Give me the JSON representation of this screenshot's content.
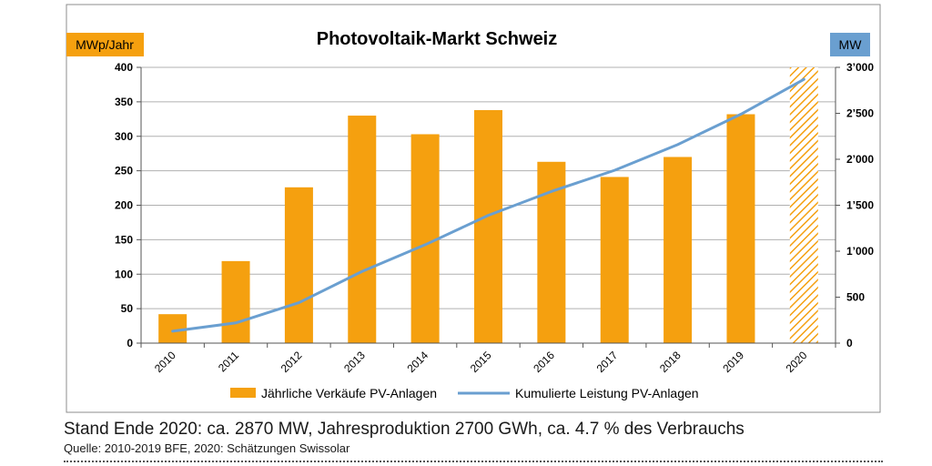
{
  "chart_data": {
    "type": "bar+line",
    "title": "Photovoltaik-Markt Schweiz",
    "left_axis_label": "MWp/Jahr",
    "right_axis_label": "MW",
    "categories": [
      "2010",
      "2011",
      "2012",
      "2013",
      "2014",
      "2015",
      "2016",
      "2017",
      "2018",
      "2019",
      "2020"
    ],
    "left_ylim": [
      0,
      400
    ],
    "left_ticks": [
      0,
      50,
      100,
      150,
      200,
      250,
      300,
      350,
      400
    ],
    "left_tick_labels": [
      "0",
      "50",
      "100",
      "150",
      "200",
      "250",
      "300",
      "350",
      "400"
    ],
    "right_ylim": [
      0,
      3000
    ],
    "right_ticks": [
      0,
      500,
      1000,
      1500,
      2000,
      2500,
      3000
    ],
    "right_tick_labels": [
      "0",
      "500",
      "1’000",
      "1’500",
      "2’000",
      "2’500",
      "3’000"
    ],
    "grid": true,
    "series": [
      {
        "name": "Jährliche Verkäufe PV-Anlagen",
        "type": "bar",
        "axis": "left",
        "color": "#f5a00f",
        "values": [
          42,
          119,
          226,
          330,
          303,
          338,
          263,
          241,
          270,
          332,
          400
        ],
        "hatched_categories": [
          "2020"
        ]
      },
      {
        "name": "Kumulierte Leistung PV-Anlagen",
        "type": "line",
        "axis": "right",
        "color": "#6a9fd0",
        "values": [
          130,
          220,
          440,
          780,
          1070,
          1390,
          1650,
          1880,
          2160,
          2490,
          2870
        ]
      }
    ],
    "legend_position": "bottom"
  },
  "footnote": {
    "main": "Stand Ende 2020: ca. 2870 MW, Jahresproduktion 2700 GWh, ca. 4.7 % des Verbrauchs",
    "source": "Quelle: 2010-2019 BFE, 2020: Schätzungen Swissolar"
  },
  "colors": {
    "left_label_bg": "#f5a00f",
    "right_label_bg": "#6a9fd0",
    "grid": "#b0b0b0",
    "frame": "#8c8c8c"
  }
}
